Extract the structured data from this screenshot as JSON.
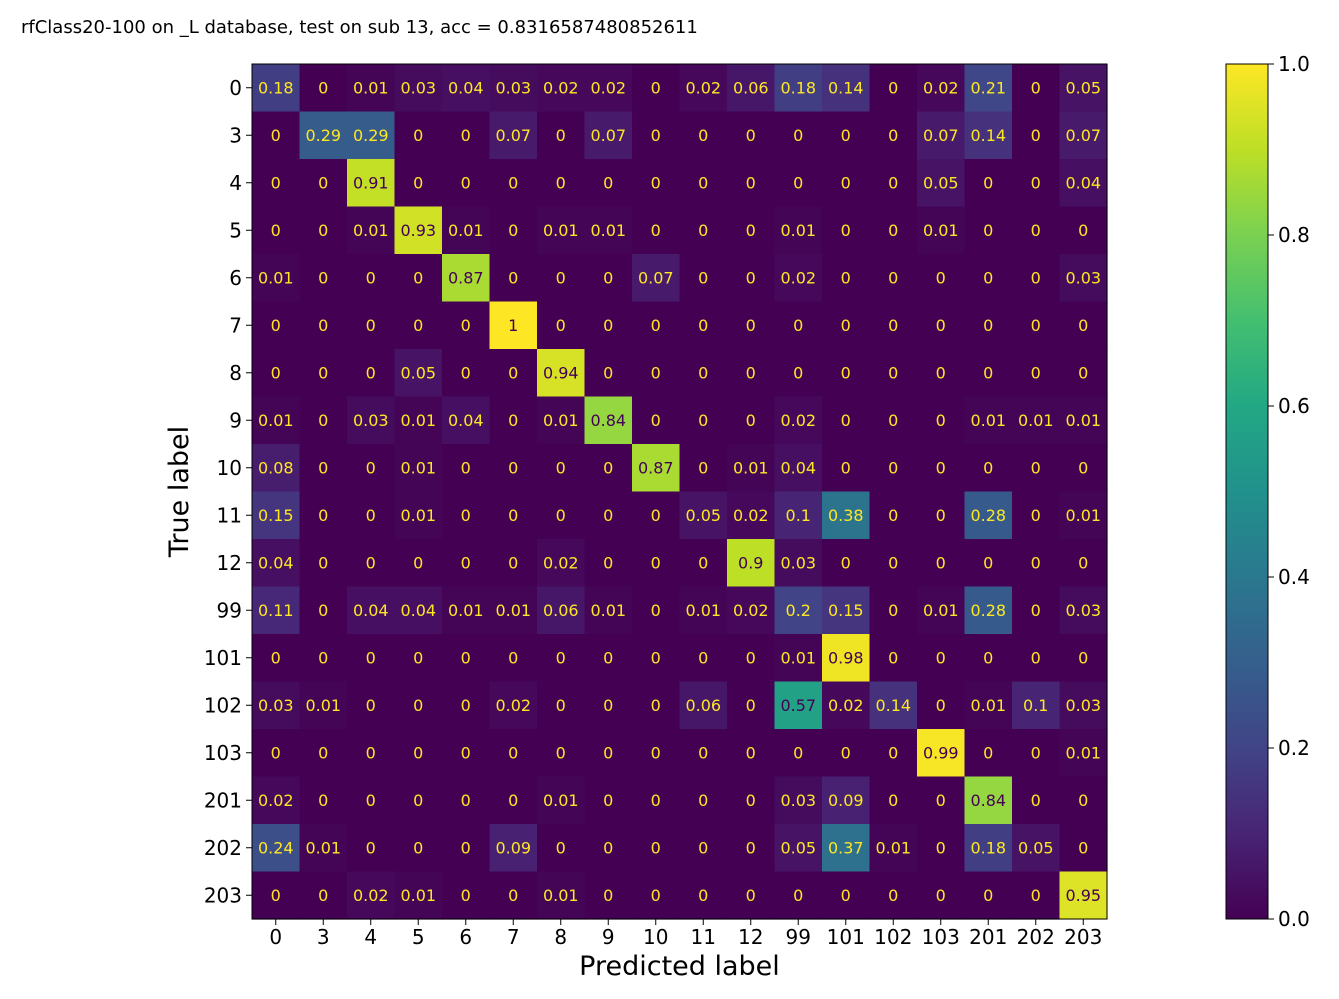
{
  "chart_data": {
    "type": "heatmap",
    "title": "rfClass20-100 on _L database, test on sub 13, acc = 0.8316587480852611",
    "xlabel": "Predicted label",
    "ylabel": "True label",
    "x_categories": [
      "0",
      "3",
      "4",
      "5",
      "6",
      "7",
      "8",
      "9",
      "10",
      "11",
      "12",
      "99",
      "101",
      "102",
      "103",
      "201",
      "202",
      "203"
    ],
    "y_categories": [
      "0",
      "3",
      "4",
      "5",
      "6",
      "7",
      "8",
      "9",
      "10",
      "11",
      "12",
      "99",
      "101",
      "102",
      "103",
      "201",
      "202",
      "203"
    ],
    "values": [
      [
        "0.18",
        "0",
        "0.01",
        "0.03",
        "0.04",
        "0.03",
        "0.02",
        "0.02",
        "0",
        "0.02",
        "0.06",
        "0.18",
        "0.14",
        "0",
        "0.02",
        "0.21",
        "0",
        "0.05"
      ],
      [
        "0",
        "0.29",
        "0.29",
        "0",
        "0",
        "0.07",
        "0",
        "0.07",
        "0",
        "0",
        "0",
        "0",
        "0",
        "0",
        "0.07",
        "0.14",
        "0",
        "0.07"
      ],
      [
        "0",
        "0",
        "0.91",
        "0",
        "0",
        "0",
        "0",
        "0",
        "0",
        "0",
        "0",
        "0",
        "0",
        "0",
        "0.05",
        "0",
        "0",
        "0.04"
      ],
      [
        "0",
        "0",
        "0.01",
        "0.93",
        "0.01",
        "0",
        "0.01",
        "0.01",
        "0",
        "0",
        "0",
        "0.01",
        "0",
        "0",
        "0.01",
        "0",
        "0",
        "0"
      ],
      [
        "0.01",
        "0",
        "0",
        "0",
        "0.87",
        "0",
        "0",
        "0",
        "0.07",
        "0",
        "0",
        "0.02",
        "0",
        "0",
        "0",
        "0",
        "0",
        "0.03"
      ],
      [
        "0",
        "0",
        "0",
        "0",
        "0",
        "1",
        "0",
        "0",
        "0",
        "0",
        "0",
        "0",
        "0",
        "0",
        "0",
        "0",
        "0",
        "0"
      ],
      [
        "0",
        "0",
        "0",
        "0.05",
        "0",
        "0",
        "0.94",
        "0",
        "0",
        "0",
        "0",
        "0",
        "0",
        "0",
        "0",
        "0",
        "0",
        "0"
      ],
      [
        "0.01",
        "0",
        "0.03",
        "0.01",
        "0.04",
        "0",
        "0.01",
        "0.84",
        "0",
        "0",
        "0",
        "0.02",
        "0",
        "0",
        "0",
        "0.01",
        "0.01",
        "0.01"
      ],
      [
        "0.08",
        "0",
        "0",
        "0.01",
        "0",
        "0",
        "0",
        "0",
        "0.87",
        "0",
        "0.01",
        "0.04",
        "0",
        "0",
        "0",
        "0",
        "0",
        "0"
      ],
      [
        "0.15",
        "0",
        "0",
        "0.01",
        "0",
        "0",
        "0",
        "0",
        "0",
        "0.05",
        "0.02",
        "0.1",
        "0.38",
        "0",
        "0",
        "0.28",
        "0",
        "0.01"
      ],
      [
        "0.04",
        "0",
        "0",
        "0",
        "0",
        "0",
        "0.02",
        "0",
        "0",
        "0",
        "0.9",
        "0.03",
        "0",
        "0",
        "0",
        "0",
        "0",
        "0"
      ],
      [
        "0.11",
        "0",
        "0.04",
        "0.04",
        "0.01",
        "0.01",
        "0.06",
        "0.01",
        "0",
        "0.01",
        "0.02",
        "0.2",
        "0.15",
        "0",
        "0.01",
        "0.28",
        "0",
        "0.03"
      ],
      [
        "0",
        "0",
        "0",
        "0",
        "0",
        "0",
        "0",
        "0",
        "0",
        "0",
        "0",
        "0.01",
        "0.98",
        "0",
        "0",
        "0",
        "0",
        "0"
      ],
      [
        "0.03",
        "0.01",
        "0",
        "0",
        "0",
        "0.02",
        "0",
        "0",
        "0",
        "0.06",
        "0",
        "0.57",
        "0.02",
        "0.14",
        "0",
        "0.01",
        "0.1",
        "0.03"
      ],
      [
        "0",
        "0",
        "0",
        "0",
        "0",
        "0",
        "0",
        "0",
        "0",
        "0",
        "0",
        "0",
        "0",
        "0",
        "0.99",
        "0",
        "0",
        "0.01"
      ],
      [
        "0.02",
        "0",
        "0",
        "0",
        "0",
        "0",
        "0.01",
        "0",
        "0",
        "0",
        "0",
        "0.03",
        "0.09",
        "0",
        "0",
        "0.84",
        "0",
        "0"
      ],
      [
        "0.24",
        "0.01",
        "0",
        "0",
        "0",
        "0.09",
        "0",
        "0",
        "0",
        "0",
        "0",
        "0.05",
        "0.37",
        "0.01",
        "0",
        "0.18",
        "0.05",
        "0"
      ],
      [
        "0",
        "0",
        "0.02",
        "0.01",
        "0",
        "0",
        "0.01",
        "0",
        "0",
        "0",
        "0",
        "0",
        "0",
        "0",
        "0",
        "0",
        "0",
        "0.95"
      ]
    ],
    "colormap": "viridis",
    "colorbar_range": [
      0.0,
      1.0
    ],
    "colorbar_ticks": [
      "0.0",
      "0.2",
      "0.4",
      "0.6",
      "0.8",
      "1.0"
    ],
    "grid": false,
    "colorbar_position": "right"
  }
}
